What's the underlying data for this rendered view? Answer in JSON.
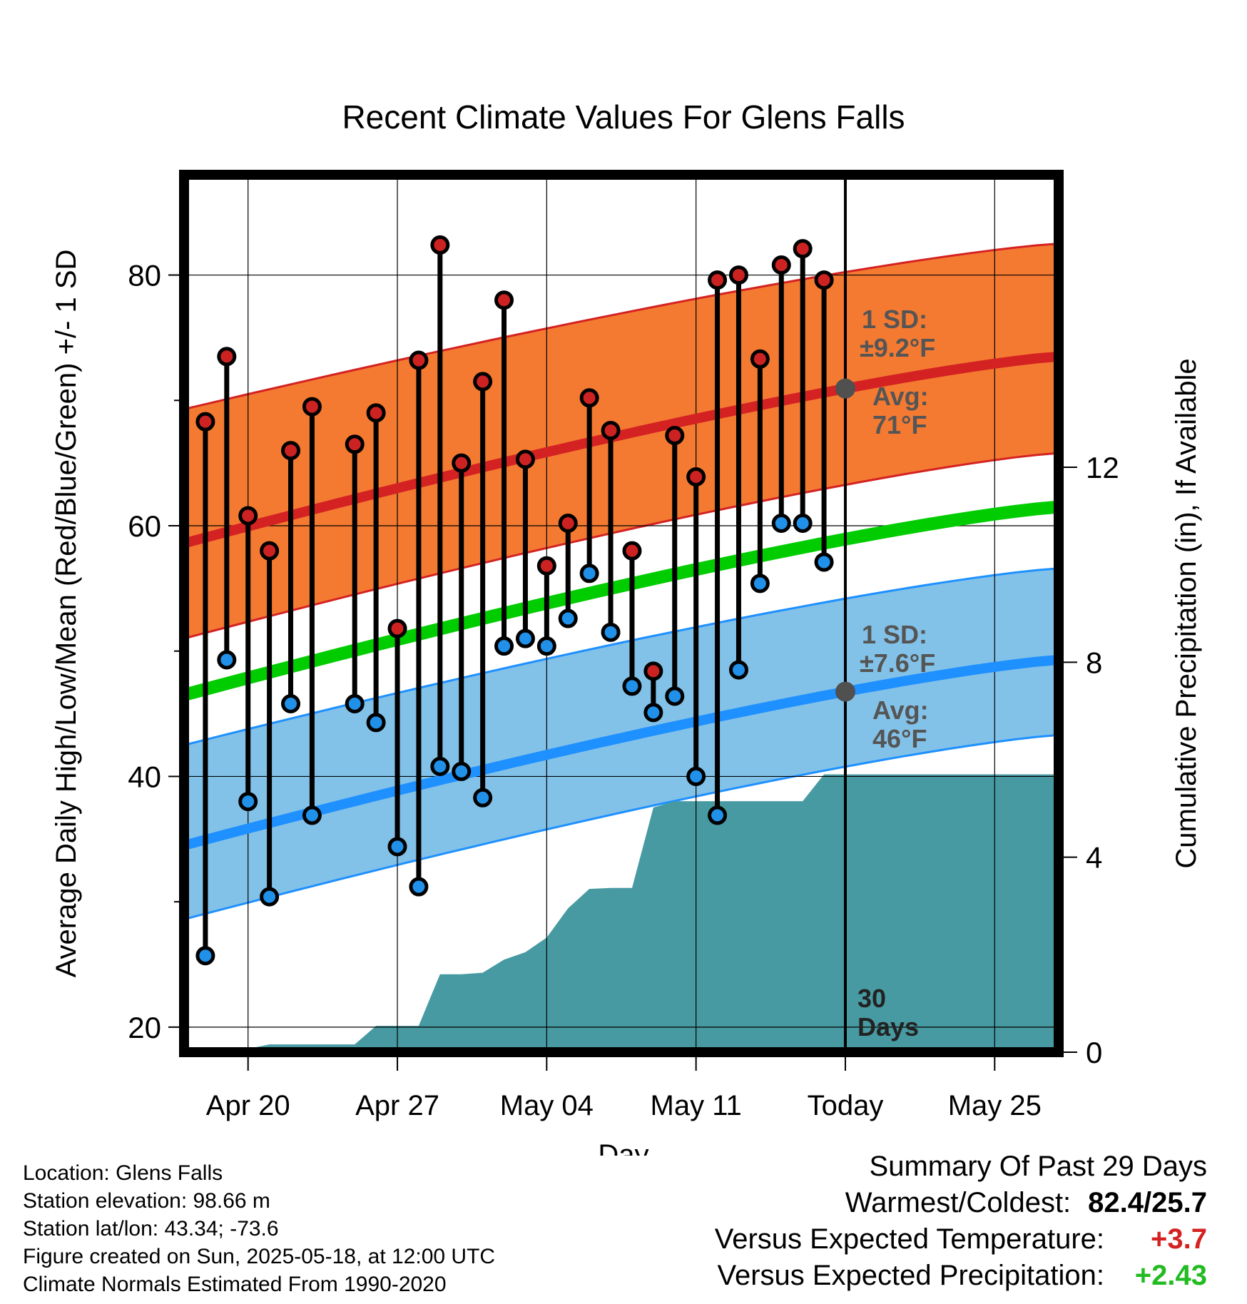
{
  "title": "Recent Climate Values For Glens Falls",
  "y_axis_label": "Average Daily High/Low/Mean (Red/Blue/Green) +/- 1 SD",
  "y2_axis_label": "Cumulative Precipitation (in), If Available",
  "x_axis_label": "Day",
  "colors": {
    "high_band": "#f47a32",
    "high_line": "#d42222",
    "low_band": "#83c2e8",
    "low_line": "#1e90ff",
    "mean_line": "#00cc00",
    "precip": "#489aa2",
    "dot_high": "#cc2222",
    "dot_low": "#2090e8",
    "today_marker": "#505050",
    "positive": "#d42222",
    "precip_pos": "#22bb22"
  },
  "annotations": {
    "high_sd_line1": "1 SD:",
    "high_sd_line2": "±9.2°F",
    "high_avg_line1": "Avg:",
    "high_avg_line2": "71°F",
    "low_sd_line1": "1 SD:",
    "low_sd_line2": "±7.6°F",
    "low_avg_line1": "Avg:",
    "low_avg_line2": "46°F",
    "days_line1": "30",
    "days_line2": "Days"
  },
  "footer_left": {
    "location": "Location: Glens Falls",
    "elevation": "Station elevation: 98.66 m",
    "latlon": "Station lat/lon: 43.34; -73.6",
    "created": "Figure created on Sun, 2025-05-18, at 12:00 UTC",
    "normals": "Climate Normals Estimated From 1990-2020"
  },
  "summary": {
    "heading": "Summary Of Past 29 Days",
    "warm_cold_label": "Warmest/Coldest:",
    "warm_cold_value": "82.4/25.7",
    "temp_label": "Versus Expected Temperature:",
    "temp_value": "+3.7",
    "precip_label": "Versus Expected Precipitation:",
    "precip_value": "+2.43"
  },
  "chart_data": {
    "type": "line",
    "x_unit": "day",
    "x_range": [
      0,
      41
    ],
    "ylim": [
      18,
      88
    ],
    "y2lim": [
      0,
      18
    ],
    "x_ticks": [
      {
        "day": 3,
        "label": "Apr 20"
      },
      {
        "day": 10,
        "label": "Apr 27"
      },
      {
        "day": 17,
        "label": "May 04"
      },
      {
        "day": 24,
        "label": "May 11"
      },
      {
        "day": 31,
        "label": "Today"
      },
      {
        "day": 38,
        "label": "May 25"
      }
    ],
    "y_ticks": [
      20,
      40,
      60,
      80
    ],
    "y2_ticks": [
      0,
      4,
      8,
      12
    ],
    "today_day": 31,
    "normals": {
      "x": [
        0,
        41
      ],
      "high_mean": [
        58.6,
        73.5
      ],
      "high_upper": [
        69.3,
        82.5
      ],
      "high_lower": [
        51.0,
        65.8
      ],
      "low_mean": [
        34.5,
        49.3
      ],
      "low_upper": [
        42.5,
        56.6
      ],
      "low_lower": [
        28.6,
        43.3
      ],
      "mean": [
        46.5,
        61.5
      ]
    },
    "daily": {
      "day": [
        1,
        2,
        3,
        4,
        5,
        6,
        8,
        9,
        10,
        11,
        12,
        13,
        14,
        15,
        16,
        17,
        18,
        19,
        20,
        21,
        22,
        23,
        24,
        25,
        26,
        27,
        28,
        29,
        30
      ],
      "high": [
        68.3,
        73.5,
        60.8,
        58.0,
        66.0,
        69.5,
        66.5,
        69.0,
        51.8,
        73.2,
        82.4,
        65.0,
        71.5,
        78.0,
        65.3,
        56.8,
        60.2,
        70.2,
        67.6,
        58.0,
        48.4,
        67.2,
        63.9,
        79.6,
        80.0,
        73.3,
        80.8,
        82.1,
        79.6
      ],
      "low": [
        25.7,
        49.3,
        38.0,
        30.4,
        45.8,
        36.9,
        45.8,
        44.3,
        34.4,
        31.2,
        40.8,
        40.4,
        38.3,
        50.4,
        51.0,
        50.4,
        52.6,
        56.2,
        51.5,
        47.2,
        45.1,
        46.4,
        40.0,
        36.9,
        48.5,
        55.4,
        60.2,
        60.2,
        57.1
      ]
    },
    "precip_cumulative": {
      "x": [
        0,
        2,
        3,
        4,
        5,
        6,
        7,
        8,
        9,
        10,
        11,
        12,
        13,
        14,
        15,
        16,
        17,
        18,
        19,
        20,
        21,
        22,
        23,
        24,
        25,
        26,
        27,
        28,
        29,
        30,
        41
      ],
      "values": [
        0.0,
        0.0,
        0.07,
        0.16,
        0.16,
        0.16,
        0.16,
        0.16,
        0.54,
        0.54,
        0.54,
        1.6,
        1.6,
        1.63,
        1.9,
        2.05,
        2.35,
        2.95,
        3.35,
        3.37,
        3.37,
        5.02,
        5.15,
        5.15,
        5.15,
        5.15,
        5.15,
        5.15,
        5.15,
        5.7,
        5.7
      ]
    }
  }
}
